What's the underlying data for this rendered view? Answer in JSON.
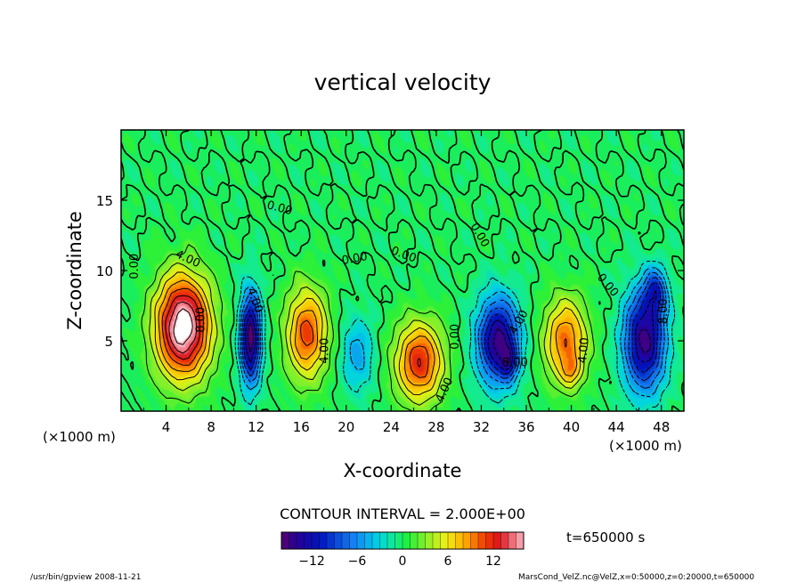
{
  "chart_data": {
    "type": "heatmap",
    "title": "vertical velocity",
    "xlabel": "X-coordinate",
    "ylabel": "Z-coordinate",
    "x_unit_left": "(×1000 m)",
    "x_unit_right": "(×1000 m)",
    "xlim": [
      0,
      50
    ],
    "ylim": [
      0,
      20
    ],
    "xticks": [
      4,
      8,
      12,
      16,
      20,
      24,
      28,
      32,
      36,
      40,
      44,
      48
    ],
    "yticks": [
      5,
      10,
      15
    ],
    "contour_interval_text": "CONTOUR INTERVAL = 2.000E+00",
    "time_text": "t=650000 s",
    "colorbar": {
      "range": [
        -16,
        16
      ],
      "ticks": [
        -12,
        -6,
        0,
        6,
        12
      ],
      "tick_labels": [
        "−12",
        "−6",
        "0",
        "6",
        "12"
      ]
    },
    "contour_labels": [
      {
        "x": 1.5,
        "y": 10.3,
        "text": "0.00",
        "rot": -90
      },
      {
        "x": 5.8,
        "y": 10.6,
        "text": "4.00",
        "rot": 25
      },
      {
        "x": 7.4,
        "y": 6.5,
        "text": "8.00",
        "rot": -90
      },
      {
        "x": 11.6,
        "y": 7.8,
        "text": "4.00",
        "rot": 70
      },
      {
        "x": 14.0,
        "y": 14.2,
        "text": "0.00",
        "rot": 15
      },
      {
        "x": 18.4,
        "y": 4.3,
        "text": "4.00",
        "rot": -90
      },
      {
        "x": 20.8,
        "y": 10.6,
        "text": "0.00",
        "rot": -10
      },
      {
        "x": 25.0,
        "y": 10.9,
        "text": "0.00",
        "rot": 20
      },
      {
        "x": 29.0,
        "y": 1.4,
        "text": "4.00",
        "rot": -65
      },
      {
        "x": 30.0,
        "y": 5.3,
        "text": "0.00",
        "rot": -90
      },
      {
        "x": 31.6,
        "y": 12.4,
        "text": "0.00",
        "rot": 60
      },
      {
        "x": 35.0,
        "y": 3.2,
        "text": "8.00",
        "rot": 0
      },
      {
        "x": 35.6,
        "y": 6.2,
        "text": "4.00",
        "rot": -60
      },
      {
        "x": 43.0,
        "y": 8.8,
        "text": "0.00",
        "rot": 50
      },
      {
        "x": 41.4,
        "y": 4.3,
        "text": "4.00",
        "rot": -85
      },
      {
        "x": 48.5,
        "y": 7.1,
        "text": "8.00",
        "rot": -90
      }
    ],
    "cells": [
      {
        "cx": 5.5,
        "cz": 6.0,
        "sx": 2.4,
        "sz": 3.6,
        "amp": 18
      },
      {
        "cx": 11.5,
        "cz": 5.2,
        "sx": 0.9,
        "sz": 3.2,
        "amp": -16
      },
      {
        "cx": 16.5,
        "cz": 5.5,
        "sx": 1.8,
        "sz": 3.2,
        "amp": 11
      },
      {
        "cx": 21.0,
        "cz": 4.0,
        "sx": 1.4,
        "sz": 2.6,
        "amp": -5
      },
      {
        "cx": 26.5,
        "cz": 3.5,
        "sx": 2.1,
        "sz": 2.8,
        "amp": 12
      },
      {
        "cx": 33.5,
        "cz": 5.0,
        "sx": 1.8,
        "sz": 3.0,
        "amp": -15
      },
      {
        "cx": 34.5,
        "cz": 3.5,
        "sx": 0.7,
        "sz": 1.2,
        "amp": -6
      },
      {
        "cx": 39.5,
        "cz": 5.0,
        "sx": 1.9,
        "sz": 3.0,
        "amp": 10
      },
      {
        "cx": 40.0,
        "cz": 2.8,
        "sx": 0.8,
        "sz": 1.0,
        "amp": 4
      },
      {
        "cx": 46.5,
        "cz": 5.0,
        "sx": 1.8,
        "sz": 3.5,
        "amp": -15
      },
      {
        "cx": 47.5,
        "cz": 8.5,
        "sx": 1.0,
        "sz": 1.6,
        "amp": -8
      }
    ]
  },
  "footer": {
    "program": "/usr/bin/gpview   2008-11-21",
    "source": "MarsCond_VelZ.nc@VelZ,x=0:50000,z=0:20000,t=650000"
  }
}
